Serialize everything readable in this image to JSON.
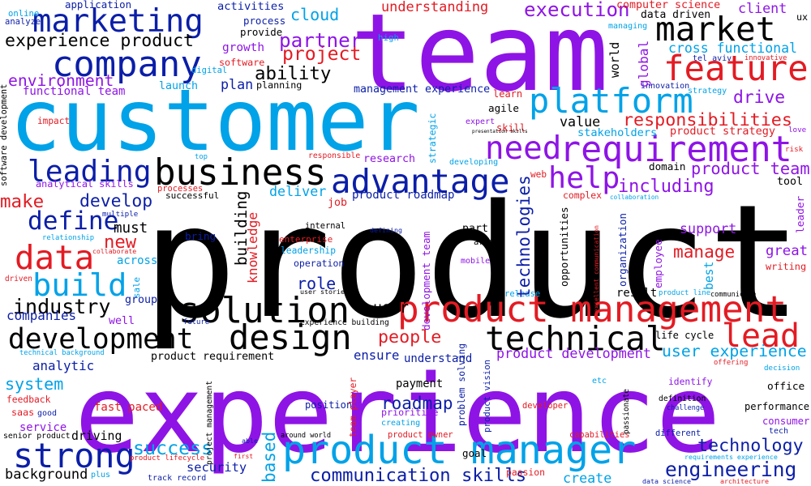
{
  "colors": {
    "black": "#000000",
    "purple": "#8e14e6",
    "cyan": "#00a2e8",
    "navy": "#0b1ea8",
    "red": "#e31b23"
  },
  "words": [
    {
      "text": "product",
      "color": "black"
    },
    {
      "text": "experience",
      "color": "purple"
    },
    {
      "text": "customer",
      "color": "cyan"
    },
    {
      "text": "team",
      "color": "purple"
    },
    {
      "text": "product management",
      "color": "red"
    },
    {
      "text": "product manager",
      "color": "cyan"
    },
    {
      "text": "solution",
      "color": "black"
    },
    {
      "text": "technical",
      "color": "black"
    },
    {
      "text": "design",
      "color": "black"
    },
    {
      "text": "development",
      "color": "black"
    },
    {
      "text": "strong",
      "color": "navy"
    },
    {
      "text": "company",
      "color": "navy"
    },
    {
      "text": "feature",
      "color": "red"
    },
    {
      "text": "platform",
      "color": "cyan"
    },
    {
      "text": "marketing",
      "color": "navy"
    },
    {
      "text": "market",
      "color": "black"
    },
    {
      "text": "requirement",
      "color": "purple"
    },
    {
      "text": "business",
      "color": "black"
    },
    {
      "text": "advantage",
      "color": "navy"
    },
    {
      "text": "data",
      "color": "red"
    },
    {
      "text": "build",
      "color": "cyan"
    },
    {
      "text": "define",
      "color": "navy"
    },
    {
      "text": "leading",
      "color": "navy"
    },
    {
      "text": "need",
      "color": "purple"
    },
    {
      "text": "help",
      "color": "purple"
    },
    {
      "text": "lead",
      "color": "red"
    },
    {
      "text": "roadmap",
      "color": "navy"
    },
    {
      "text": "engineering",
      "color": "navy"
    },
    {
      "text": "technology",
      "color": "navy"
    },
    {
      "text": "including",
      "color": "purple"
    },
    {
      "text": "experience product",
      "color": "black"
    },
    {
      "text": "project",
      "color": "red"
    },
    {
      "text": "partner",
      "color": "purple"
    },
    {
      "text": "cloud",
      "color": "cyan"
    },
    {
      "text": "execution",
      "color": "purple"
    },
    {
      "text": "environment",
      "color": "purple"
    },
    {
      "text": "ability",
      "color": "black"
    },
    {
      "text": "drive",
      "color": "purple"
    },
    {
      "text": "responsibilities",
      "color": "red"
    },
    {
      "text": "product team",
      "color": "purple"
    },
    {
      "text": "cross functional",
      "color": "cyan"
    },
    {
      "text": "user experience",
      "color": "cyan"
    },
    {
      "text": "product development",
      "color": "purple"
    },
    {
      "text": "communication skills",
      "color": "navy"
    },
    {
      "text": "success",
      "color": "cyan"
    },
    {
      "text": "security",
      "color": "navy"
    },
    {
      "text": "industry",
      "color": "black"
    },
    {
      "text": "people",
      "color": "red"
    },
    {
      "text": "role",
      "color": "navy"
    },
    {
      "text": "manage",
      "color": "red"
    },
    {
      "text": "great",
      "color": "purple"
    },
    {
      "text": "support",
      "color": "purple"
    },
    {
      "text": "develop",
      "color": "navy"
    },
    {
      "text": "make",
      "color": "red"
    },
    {
      "text": "new",
      "color": "red"
    },
    {
      "text": "system",
      "color": "cyan"
    },
    {
      "text": "analytic",
      "color": "navy"
    },
    {
      "text": "background",
      "color": "black"
    },
    {
      "text": "user",
      "color": "black"
    },
    {
      "text": "value",
      "color": "black"
    },
    {
      "text": "plan",
      "color": "navy"
    },
    {
      "text": "growth",
      "color": "purple"
    },
    {
      "text": "deliver",
      "color": "cyan"
    },
    {
      "text": "launch",
      "color": "cyan"
    },
    {
      "text": "create",
      "color": "cyan"
    },
    {
      "text": "companies",
      "color": "navy"
    },
    {
      "text": "service",
      "color": "purple"
    },
    {
      "text": "saas",
      "color": "red"
    },
    {
      "text": "driving",
      "color": "black"
    },
    {
      "text": "ensure",
      "color": "navy"
    },
    {
      "text": "understand",
      "color": "navy"
    },
    {
      "text": "prioritize",
      "color": "purple"
    },
    {
      "text": "payment",
      "color": "black"
    },
    {
      "text": "position",
      "color": "navy"
    },
    {
      "text": "stakeholders",
      "color": "cyan"
    },
    {
      "text": "product strategy",
      "color": "red"
    },
    {
      "text": "research",
      "color": "purple"
    },
    {
      "text": "office",
      "color": "black"
    },
    {
      "text": "performance",
      "color": "black"
    },
    {
      "text": "consumer",
      "color": "purple"
    },
    {
      "text": "different",
      "color": "navy"
    },
    {
      "text": "must",
      "color": "black"
    },
    {
      "text": "across",
      "color": "cyan"
    },
    {
      "text": "group",
      "color": "navy"
    },
    {
      "text": "well",
      "color": "purple"
    },
    {
      "text": "functional team",
      "color": "purple"
    },
    {
      "text": "management experience",
      "color": "navy"
    },
    {
      "text": "understanding",
      "color": "red"
    },
    {
      "text": "activities",
      "color": "navy"
    },
    {
      "text": "application",
      "color": "navy"
    },
    {
      "text": "online",
      "color": "cyan"
    },
    {
      "text": "analyze",
      "color": "navy"
    },
    {
      "text": "process",
      "color": "navy"
    },
    {
      "text": "provide",
      "color": "black"
    },
    {
      "text": "data driven",
      "color": "black"
    },
    {
      "text": "computer science",
      "color": "red"
    },
    {
      "text": "client",
      "color": "purple"
    },
    {
      "text": "ux",
      "color": "black"
    },
    {
      "text": "high",
      "color": "cyan"
    },
    {
      "text": "software",
      "color": "red"
    },
    {
      "text": "digital",
      "color": "cyan"
    },
    {
      "text": "planning",
      "color": "black"
    },
    {
      "text": "managing",
      "color": "cyan"
    },
    {
      "text": "tel aviv",
      "color": "navy"
    },
    {
      "text": "innovative",
      "color": "red"
    },
    {
      "text": "innovation",
      "color": "navy"
    },
    {
      "text": "strategy",
      "color": "cyan"
    },
    {
      "text": "learn",
      "color": "red"
    },
    {
      "text": "agile",
      "color": "black"
    },
    {
      "text": "expert",
      "color": "purple"
    },
    {
      "text": "skill",
      "color": "red"
    },
    {
      "text": "presentation skills",
      "color": "black"
    },
    {
      "text": "impact",
      "color": "red"
    },
    {
      "text": "love",
      "color": "purple"
    },
    {
      "text": "risk",
      "color": "red"
    },
    {
      "text": "top",
      "color": "cyan"
    },
    {
      "text": "responsible",
      "color": "red"
    },
    {
      "text": "developing",
      "color": "cyan"
    },
    {
      "text": "domain",
      "color": "black"
    },
    {
      "text": "tool",
      "color": "black"
    },
    {
      "text": "analytical skills",
      "color": "purple"
    },
    {
      "text": "processes",
      "color": "red"
    },
    {
      "text": "successful",
      "color": "black"
    },
    {
      "text": "job",
      "color": "red"
    },
    {
      "text": "product roadmap",
      "color": "navy"
    },
    {
      "text": "web",
      "color": "red"
    },
    {
      "text": "complex",
      "color": "red"
    },
    {
      "text": "collaboration",
      "color": "cyan"
    },
    {
      "text": "multiple",
      "color": "navy"
    },
    {
      "text": "internal",
      "color": "black"
    },
    {
      "text": "relationship",
      "color": "cyan"
    },
    {
      "text": "bring",
      "color": "navy"
    },
    {
      "text": "enterprise",
      "color": "red"
    },
    {
      "text": "leadership",
      "color": "cyan"
    },
    {
      "text": "defining",
      "color": "navy"
    },
    {
      "text": "part",
      "color": "black"
    },
    {
      "text": "area",
      "color": "black"
    },
    {
      "text": "collaborate",
      "color": "red"
    },
    {
      "text": "operation",
      "color": "navy"
    },
    {
      "text": "mobile",
      "color": "purple"
    },
    {
      "text": "writing",
      "color": "red"
    },
    {
      "text": "driven",
      "color": "red"
    },
    {
      "text": "user stories",
      "color": "black"
    },
    {
      "text": "release",
      "color": "cyan"
    },
    {
      "text": "product line",
      "color": "cyan"
    },
    {
      "text": "communicate",
      "color": "black"
    },
    {
      "text": "result",
      "color": "black"
    },
    {
      "text": "future",
      "color": "navy"
    },
    {
      "text": "experience building",
      "color": "black"
    },
    {
      "text": "life cycle",
      "color": "black"
    },
    {
      "text": "offering",
      "color": "red"
    },
    {
      "text": "technical background",
      "color": "cyan"
    },
    {
      "text": "product requirement",
      "color": "black"
    },
    {
      "text": "decision",
      "color": "cyan"
    },
    {
      "text": "feedback",
      "color": "red"
    },
    {
      "text": "etc",
      "color": "cyan"
    },
    {
      "text": "identify",
      "color": "purple"
    },
    {
      "text": "definition",
      "color": "black"
    },
    {
      "text": "challenge",
      "color": "navy"
    },
    {
      "text": "fast paced",
      "color": "red"
    },
    {
      "text": "good",
      "color": "navy"
    },
    {
      "text": "developer",
      "color": "red"
    },
    {
      "text": "creating",
      "color": "cyan"
    },
    {
      "text": "product owner",
      "color": "red"
    },
    {
      "text": "around world",
      "color": "black"
    },
    {
      "text": "senior product",
      "color": "black"
    },
    {
      "text": "able",
      "color": "navy"
    },
    {
      "text": "first",
      "color": "red"
    },
    {
      "text": "capabilities",
      "color": "red"
    },
    {
      "text": "tech",
      "color": "navy"
    },
    {
      "text": "requirements experience",
      "color": "cyan"
    },
    {
      "text": "product lifecycle",
      "color": "red"
    },
    {
      "text": "track record",
      "color": "navy"
    },
    {
      "text": "goal",
      "color": "black"
    },
    {
      "text": "plus",
      "color": "cyan"
    },
    {
      "text": "passion",
      "color": "red"
    },
    {
      "text": "data science",
      "color": "navy"
    },
    {
      "text": "architecture",
      "color": "red"
    },
    {
      "text": "software development",
      "color": "black"
    },
    {
      "text": "world",
      "color": "black"
    },
    {
      "text": "global",
      "color": "purple"
    },
    {
      "text": "strategic",
      "color": "cyan"
    },
    {
      "text": "building",
      "color": "black"
    },
    {
      "text": "knowledge",
      "color": "red"
    },
    {
      "text": "sale",
      "color": "cyan"
    },
    {
      "text": "based",
      "color": "cyan"
    },
    {
      "text": "technologies",
      "color": "navy"
    },
    {
      "text": "opportunities",
      "color": "black"
    },
    {
      "text": "development team",
      "color": "purple"
    },
    {
      "text": "problem solving",
      "color": "navy"
    },
    {
      "text": "product vision",
      "color": "navy"
    },
    {
      "text": "team player",
      "color": "red"
    },
    {
      "text": "project management",
      "color": "black"
    },
    {
      "text": "organization",
      "color": "navy"
    },
    {
      "text": "excellent communication",
      "color": "red"
    },
    {
      "text": "employee",
      "color": "purple"
    },
    {
      "text": "best",
      "color": "cyan"
    },
    {
      "text": "leader",
      "color": "purple"
    },
    {
      "text": "passionate",
      "color": "black"
    }
  ]
}
